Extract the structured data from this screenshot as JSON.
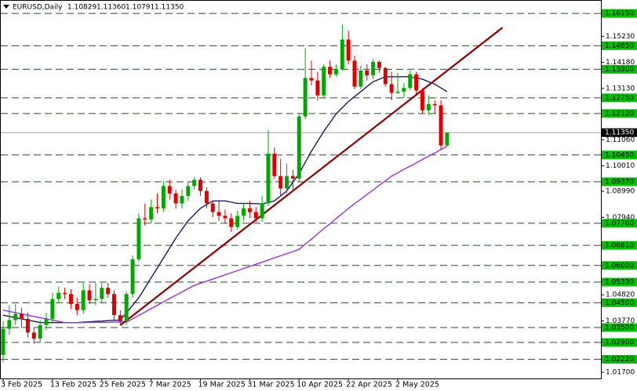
{
  "chart_data": {
    "type": "candlestick",
    "title": "EURUSD,Daily",
    "header_prices": [
      {
        "value": 1.10829,
        "label": "1.10829"
      },
      {
        "value": 1.1136,
        "label": "1.11360"
      },
      {
        "value": 1.10791,
        "label": "1.10791"
      },
      {
        "value": 1.1135,
        "label": "1.11350"
      }
    ],
    "categories": [
      "3 Feb 2025",
      null,
      null,
      null,
      null,
      null,
      null,
      null,
      "13 Feb 2025",
      null,
      null,
      null,
      null,
      null,
      null,
      null,
      "25 Feb 2025",
      null,
      null,
      null,
      null,
      null,
      null,
      null,
      "7 Mar 2025",
      null,
      null,
      null,
      null,
      null,
      null,
      null,
      "19 Mar 2025",
      null,
      null,
      null,
      null,
      null,
      null,
      null,
      "31 Mar 2025",
      null,
      null,
      null,
      null,
      null,
      null,
      null,
      "10 Apr 2025",
      null,
      null,
      null,
      null,
      null,
      null,
      null,
      "22 Apr 2025",
      null,
      null,
      null,
      null,
      null,
      null,
      null,
      "2 May 2025",
      null,
      null,
      null,
      null,
      null,
      null,
      null,
      null
    ],
    "open": [
      1.024,
      1.0345,
      1.038,
      1.0405,
      1.0385,
      1.033,
      1.0305,
      1.036,
      1.0385,
      1.0465,
      1.049,
      1.0485,
      1.0445,
      1.042,
      1.05,
      1.046,
      1.0465,
      1.051,
      1.0485,
      1.04,
      1.0375,
      1.0485,
      1.0625,
      1.079,
      1.0785,
      1.0835,
      1.083,
      1.092,
      1.089,
      1.085,
      1.088,
      1.092,
      1.0945,
      1.09,
      1.085,
      1.0815,
      1.08,
      1.079,
      1.0755,
      1.08,
      1.083,
      1.0815,
      1.079,
      1.085,
      1.105,
      1.096,
      1.091,
      1.096,
      1.095,
      1.12,
      1.1355,
      1.1345,
      1.1285,
      1.14,
      1.137,
      1.139,
      1.151,
      1.1425,
      1.132,
      1.1385,
      1.1365,
      1.142,
      1.1395,
      1.133,
      1.1295,
      1.13,
      1.1315,
      1.137,
      1.1305,
      1.1225,
      1.125,
      1.1245,
      1.10829
    ],
    "high": [
      1.0375,
      1.044,
      1.0445,
      1.043,
      1.041,
      1.035,
      1.038,
      1.041,
      1.049,
      1.0515,
      1.051,
      1.0505,
      1.047,
      1.053,
      1.0525,
      1.053,
      1.053,
      1.053,
      1.05,
      1.042,
      1.0495,
      1.064,
      1.081,
      1.085,
      1.0865,
      1.089,
      1.094,
      1.0945,
      1.0905,
      1.0905,
      1.0935,
      1.0955,
      1.0955,
      1.0915,
      1.086,
      1.086,
      1.0825,
      1.081,
      1.082,
      1.085,
      1.086,
      1.0835,
      1.088,
      1.1145,
      1.1075,
      1.103,
      1.101,
      1.0985,
      1.1215,
      1.1475,
      1.1425,
      1.138,
      1.141,
      1.1425,
      1.141,
      1.157,
      1.1545,
      1.1445,
      1.1405,
      1.141,
      1.143,
      1.1425,
      1.14,
      1.138,
      1.1375,
      1.1335,
      1.1385,
      1.138,
      1.1315,
      1.1285,
      1.1265,
      1.1265,
      1.1136
    ],
    "low": [
      1.021,
      1.032,
      1.036,
      1.035,
      1.031,
      1.0285,
      1.029,
      1.034,
      1.037,
      1.045,
      1.0465,
      1.0425,
      1.04,
      1.0405,
      1.0445,
      1.044,
      1.045,
      1.047,
      1.038,
      1.036,
      1.036,
      1.047,
      1.0615,
      1.076,
      1.077,
      1.081,
      1.0815,
      1.0865,
      1.083,
      1.083,
      1.086,
      1.0905,
      1.088,
      1.083,
      1.0795,
      1.078,
      1.077,
      1.0735,
      1.0745,
      1.078,
      1.079,
      1.0775,
      1.0775,
      1.084,
      1.095,
      1.088,
      1.089,
      1.09,
      1.094,
      1.119,
      1.1325,
      1.1265,
      1.1275,
      1.1355,
      1.136,
      1.1385,
      1.141,
      1.131,
      1.131,
      1.1345,
      1.135,
      1.1375,
      1.132,
      1.1265,
      1.129,
      1.1275,
      1.1305,
      1.129,
      1.121,
      1.1205,
      1.121,
      1.1065,
      1.10791
    ],
    "close": [
      1.0345,
      1.038,
      1.0405,
      1.0385,
      1.033,
      1.0305,
      1.036,
      1.0385,
      1.0465,
      1.049,
      1.0485,
      1.0445,
      1.042,
      1.05,
      1.046,
      1.0465,
      1.051,
      1.0485,
      1.04,
      1.0375,
      1.0485,
      1.0625,
      1.079,
      1.0785,
      1.0835,
      1.083,
      1.092,
      1.089,
      1.085,
      1.088,
      1.092,
      1.0945,
      1.09,
      1.085,
      1.0815,
      1.08,
      1.079,
      1.0755,
      1.08,
      1.083,
      1.0815,
      1.079,
      1.085,
      1.105,
      1.096,
      1.091,
      1.096,
      1.095,
      1.12,
      1.1355,
      1.1345,
      1.1285,
      1.14,
      1.137,
      1.139,
      1.151,
      1.1425,
      1.132,
      1.1385,
      1.1365,
      1.142,
      1.1395,
      1.133,
      1.1295,
      1.13,
      1.1315,
      1.137,
      1.1305,
      1.1225,
      1.125,
      1.1245,
      1.1083,
      1.1135
    ],
    "up_color": "#00a800",
    "down_color": "#e00000",
    "lines": [
      {
        "color": "#1a1a5e",
        "values": [
          1.04,
          1.0395,
          1.039,
          1.0385,
          1.038,
          1.0375,
          1.037,
          1.037,
          1.037,
          1.037,
          1.037,
          1.037,
          1.037,
          1.0372,
          1.0373,
          1.0375,
          1.0376,
          1.0378,
          1.0379,
          1.038,
          1.041,
          1.044,
          1.047,
          1.051,
          1.055,
          1.059,
          1.063,
          1.067,
          1.071,
          1.0745,
          1.078,
          1.0805,
          1.083,
          1.0845,
          1.086,
          1.086,
          1.086,
          1.0855,
          1.085,
          1.085,
          1.085,
          1.0849,
          1.0848,
          1.0854,
          1.086,
          1.088,
          1.09,
          1.0935,
          1.097,
          1.1015,
          1.106,
          1.11,
          1.114,
          1.1175,
          1.121,
          1.1235,
          1.126,
          1.128,
          1.13,
          1.132,
          1.134,
          1.135,
          1.136,
          1.136,
          1.136,
          1.136,
          1.136,
          1.1355,
          1.135,
          1.134,
          1.133,
          1.1315,
          1.13
        ]
      },
      {
        "color": "#9933cc",
        "values": [
          1.042,
          1.0415,
          1.041,
          1.0405,
          1.04,
          1.0395,
          1.039,
          1.0385,
          1.038,
          1.0375,
          1.037,
          1.037,
          1.037,
          1.037,
          1.0371,
          1.0371,
          1.0371,
          1.0371,
          1.0372,
          1.0372,
          1.0372,
          1.0385,
          1.0399,
          1.0412,
          1.0426,
          1.044,
          1.0453,
          1.0467,
          1.048,
          1.0493,
          1.0507,
          1.052,
          1.0528,
          1.0537,
          1.0545,
          1.0554,
          1.0562,
          1.0571,
          1.0579,
          1.0588,
          1.0596,
          1.0605,
          1.0613,
          1.0622,
          1.0631,
          1.0639,
          1.0648,
          1.0656,
          1.0665,
          1.0686,
          1.0706,
          1.0727,
          1.0748,
          1.0768,
          1.0789,
          1.0809,
          1.083,
          1.0849,
          1.0867,
          1.0886,
          1.0904,
          1.0923,
          1.0941,
          1.096,
          1.0973,
          1.0987,
          1.1,
          1.1013,
          1.1027,
          1.104,
          1.1053,
          1.1067,
          1.108
        ]
      }
    ],
    "trendline": {
      "color": "#8b0000",
      "x": [
        19,
        81
      ],
      "values": [
        1.0359,
        1.1558
      ]
    },
    "ylim": [
      1.0145,
      1.1669
    ],
    "yticks": [
      {
        "value": 1.1523,
        "label": "1.15230"
      },
      {
        "value": 1.1418,
        "label": "1.14180"
      },
      {
        "value": 1.1313,
        "label": "1.13130"
      },
      {
        "value": 1.1106,
        "label": "1.11060"
      },
      {
        "value": 1.1001,
        "label": "1.10010"
      },
      {
        "value": 1.0899,
        "label": "1.08990"
      },
      {
        "value": 1.0794,
        "label": "1.07940"
      },
      {
        "value": 1.0482,
        "label": "1.04820"
      },
      {
        "value": 1.0377,
        "label": "1.03770"
      },
      {
        "value": 1.017,
        "label": "1.01700"
      }
    ],
    "levels": [
      {
        "value": 1.1615,
        "label": "1.16150"
      },
      {
        "value": 1.1485,
        "label": "1.14850"
      },
      {
        "value": 1.139,
        "label": "1.13900"
      },
      {
        "value": 1.1275,
        "label": "1.12750"
      },
      {
        "value": 1.1212,
        "label": "1.12120"
      },
      {
        "value": 1.1045,
        "label": "1.10450"
      },
      {
        "value": 1.0937,
        "label": "1.09370"
      },
      {
        "value": 1.077,
        "label": "1.07700"
      },
      {
        "value": 1.0681,
        "label": "1.06810"
      },
      {
        "value": 1.06,
        "label": "1.06000"
      },
      {
        "value": 1.0533,
        "label": "1.05330"
      },
      {
        "value": 1.045,
        "label": "1.04500"
      },
      {
        "value": 1.035,
        "label": "1.03500"
      },
      {
        "value": 1.029,
        "label": "1.02900"
      },
      {
        "value": 1.0222,
        "label": "1.02220"
      }
    ],
    "level_color": "#00c000",
    "level_line_color": "#2a4a2a",
    "current_price": {
      "value": 1.1135,
      "label": "1.11350"
    }
  }
}
